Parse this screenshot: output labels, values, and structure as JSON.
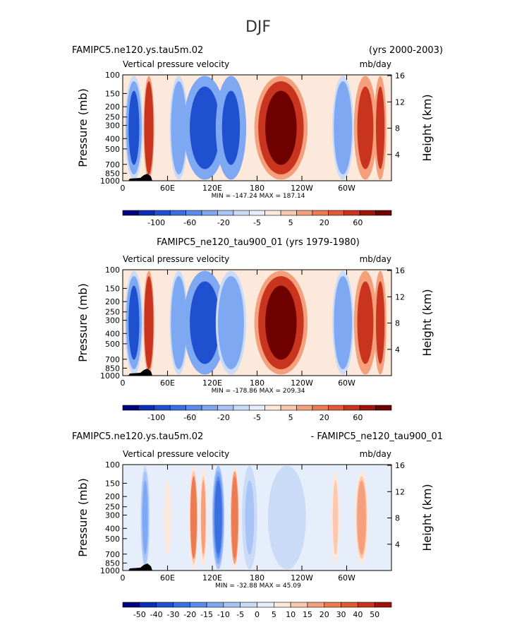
{
  "figure_title": "DJF",
  "chart_data": [
    {
      "type": "heatmap",
      "title_left": "FAMIPC5.ne120.ys.tau5m.02",
      "title_right": "(yrs 2000-2003)",
      "title_center": "",
      "variable": "Vertical pressure velocity",
      "units": "mb/day",
      "ylabel": "Pressure (mb)",
      "ylabel_right": "Height (km)",
      "y_ticks": [
        "100",
        "150",
        "200",
        "250",
        "300",
        "400",
        "500",
        "700",
        "850",
        "1000"
      ],
      "y_ticks_right": [
        "16",
        "12",
        "8",
        "4"
      ],
      "x_ticks": [
        "0",
        "60E",
        "120E",
        "180",
        "120W",
        "60W"
      ],
      "stats": "MIN = -147.24   MAX = 187.14",
      "colorbar_labels": [
        "-100",
        "-60",
        "-20",
        "-5",
        "5",
        "20",
        "60"
      ],
      "colorbar_colors": [
        "#00007f",
        "#0a2fb5",
        "#1f50d0",
        "#3a6fe0",
        "#5b8ced",
        "#7fa8f3",
        "#a8c4f7",
        "#cadbf8",
        "#e7eefb",
        "#fde8dc",
        "#fbc9ad",
        "#f4a07d",
        "#ec7a52",
        "#e05a34",
        "#c9341f",
        "#9f1509",
        "#6e0000"
      ],
      "fields": [
        {
          "lon": 15,
          "width": 12,
          "value": -65
        },
        {
          "lon": 35,
          "width": 7,
          "value": 50
        },
        {
          "lon": 75,
          "width": 12,
          "value": -40
        },
        {
          "lon": 110,
          "width": 28,
          "value": -100
        },
        {
          "lon": 145,
          "width": 20,
          "value": -70
        },
        {
          "lon": 212,
          "width": 35,
          "value": 60
        },
        {
          "lon": 295,
          "width": 14,
          "value": -55
        },
        {
          "lon": 325,
          "width": 15,
          "value": 30
        },
        {
          "lon": 345,
          "width": 8,
          "value": 25
        }
      ]
    },
    {
      "type": "heatmap",
      "title_left": "",
      "title_right": "",
      "title_center": "FAMIPC5_ne120_tau900_01 (yrs 1979-1980)",
      "variable": "Vertical pressure velocity",
      "units": "mb/day",
      "ylabel": "Pressure (mb)",
      "ylabel_right": "Height (km)",
      "y_ticks": [
        "100",
        "150",
        "200",
        "250",
        "300",
        "400",
        "500",
        "700",
        "850",
        "1000"
      ],
      "y_ticks_right": [
        "16",
        "12",
        "8",
        "4"
      ],
      "x_ticks": [
        "0",
        "60E",
        "120E",
        "180",
        "120W",
        "60W"
      ],
      "stats": "MIN = -178.86   MAX = 209.34",
      "colorbar_labels": [
        "-100",
        "-60",
        "-20",
        "-5",
        "5",
        "20",
        "60"
      ],
      "colorbar_colors": [
        "#00007f",
        "#0a2fb5",
        "#1f50d0",
        "#3a6fe0",
        "#5b8ced",
        "#7fa8f3",
        "#a8c4f7",
        "#cadbf8",
        "#e7eefb",
        "#fde8dc",
        "#fbc9ad",
        "#f4a07d",
        "#ec7a52",
        "#e05a34",
        "#c9341f",
        "#9f1509",
        "#6e0000"
      ],
      "fields": [
        {
          "lon": 15,
          "width": 12,
          "value": -65
        },
        {
          "lon": 35,
          "width": 7,
          "value": 50
        },
        {
          "lon": 75,
          "width": 12,
          "value": -45
        },
        {
          "lon": 110,
          "width": 28,
          "value": -95
        },
        {
          "lon": 145,
          "width": 20,
          "value": -60
        },
        {
          "lon": 212,
          "width": 35,
          "value": 60
        },
        {
          "lon": 295,
          "width": 14,
          "value": -55
        },
        {
          "lon": 325,
          "width": 15,
          "value": 35
        },
        {
          "lon": 345,
          "width": 8,
          "value": 25
        }
      ]
    },
    {
      "type": "heatmap",
      "title_left": "FAMIPC5.ne120.ys.tau5m.02",
      "title_right": "- FAMIPC5_ne120_tau900_01",
      "title_center": "",
      "variable": "Vertical pressure velocity",
      "units": "mb/day",
      "ylabel": "Pressure (mb)",
      "ylabel_right": "Height (km)",
      "y_ticks": [
        "100",
        "150",
        "200",
        "250",
        "300",
        "400",
        "500",
        "700",
        "850",
        "1000"
      ],
      "y_ticks_right": [
        "16",
        "12",
        "8",
        "4"
      ],
      "x_ticks": [
        "0",
        "60E",
        "120E",
        "180",
        "120W",
        "60W"
      ],
      "stats": "MIN = -32.88   MAX = 45.09",
      "colorbar_labels": [
        "-50",
        "-40",
        "-30",
        "-20",
        "-15",
        "-10",
        "-5",
        "0",
        "5",
        "10",
        "15",
        "20",
        "30",
        "40",
        "50"
      ],
      "colorbar_colors": [
        "#00007f",
        "#0a2fb5",
        "#1f50d0",
        "#3a6fe0",
        "#5b8ced",
        "#7fa8f3",
        "#a8c4f7",
        "#cadbf8",
        "#e7eefb",
        "#fde8dc",
        "#fbc9ad",
        "#f4a07d",
        "#ec7a52",
        "#e05a34",
        "#c9341f",
        "#9f1509"
      ],
      "fields": [
        {
          "lon": 30,
          "width": 6,
          "value": -12
        },
        {
          "lon": 60,
          "width": 8,
          "value": 6
        },
        {
          "lon": 95,
          "width": 6,
          "value": 25
        },
        {
          "lon": 108,
          "width": 5,
          "value": 18
        },
        {
          "lon": 128,
          "width": 8,
          "value": -22
        },
        {
          "lon": 150,
          "width": 6,
          "value": 28
        },
        {
          "lon": 170,
          "width": 10,
          "value": -6
        },
        {
          "lon": 220,
          "width": 25,
          "value": -4
        },
        {
          "lon": 285,
          "width": 6,
          "value": 10
        },
        {
          "lon": 320,
          "width": 10,
          "value": 15
        }
      ]
    }
  ]
}
